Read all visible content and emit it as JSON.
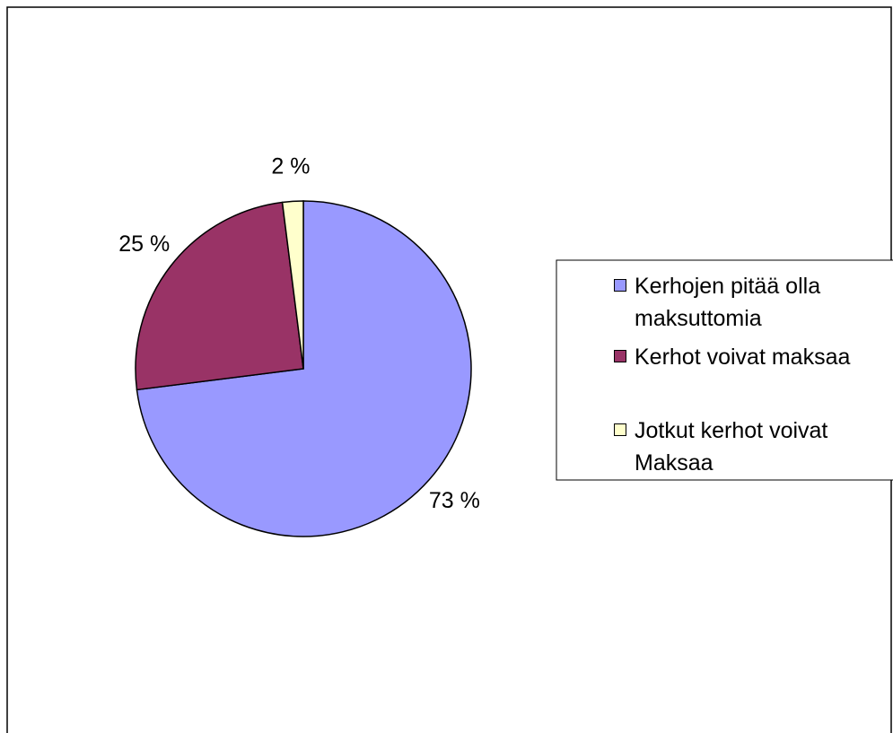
{
  "chart_data": {
    "type": "pie",
    "categories": [
      "Kerhojen pitää olla maksuttomia",
      "Kerhot voivat maksaa",
      "Jotkut kerhot voivat Maksaa"
    ],
    "values": [
      73,
      25,
      2
    ],
    "value_labels": [
      "73 %",
      "25 %",
      "2 %"
    ],
    "colors": [
      "#9999ff",
      "#993366",
      "#ffffcc"
    ],
    "legend": "right"
  }
}
